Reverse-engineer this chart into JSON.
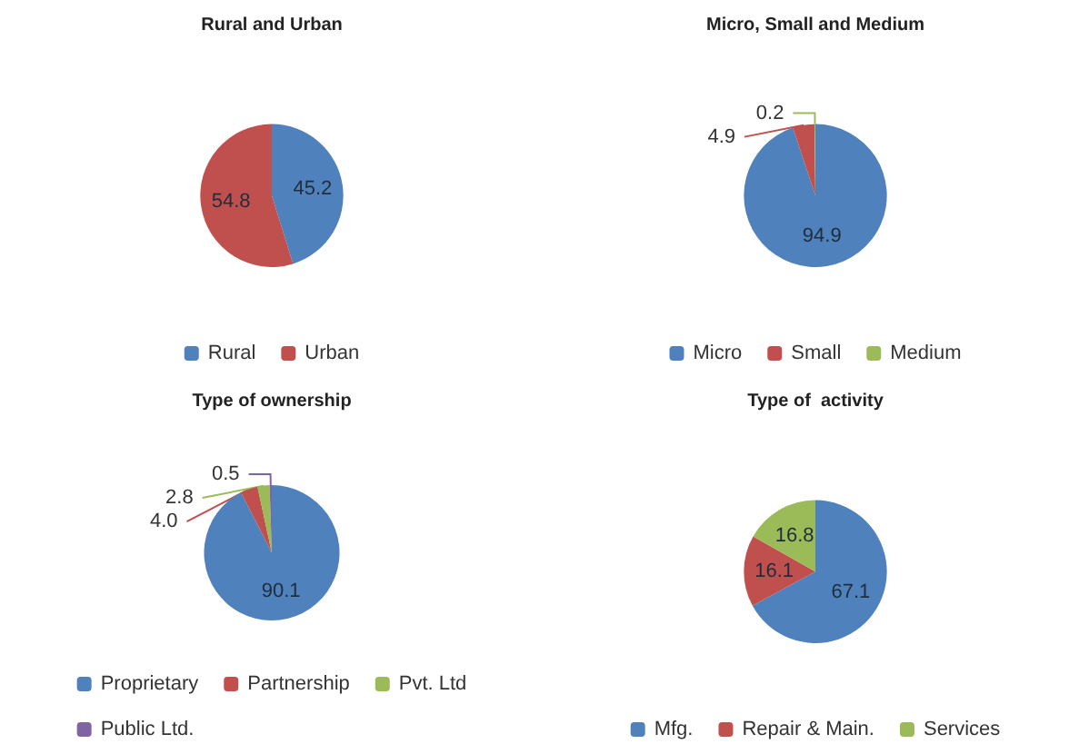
{
  "chart_data": [
    {
      "type": "pie",
      "title": "Rural and Urban",
      "categories": [
        "Rural",
        "Urban"
      ],
      "values": [
        45.2,
        54.8
      ],
      "colors": [
        "#4f81bd",
        "#c0504d"
      ],
      "data_labels": true,
      "legend": "bottom"
    },
    {
      "type": "pie",
      "title": "Micro, Small and Medium",
      "categories": [
        "Micro",
        "Small",
        "Medium"
      ],
      "values": [
        94.9,
        4.9,
        0.2
      ],
      "colors": [
        "#4f81bd",
        "#c0504d",
        "#9bbb59"
      ],
      "data_labels": true,
      "legend": "bottom"
    },
    {
      "type": "pie",
      "title": "Type of ownership",
      "categories": [
        "Proprietary",
        "Partnership",
        "Pvt. Ltd",
        "Public Ltd."
      ],
      "values": [
        90.1,
        4.0,
        2.8,
        0.5
      ],
      "value_labels": [
        "90.1",
        "4.0",
        "2.8",
        "0.5"
      ],
      "colors": [
        "#4f81bd",
        "#c0504d",
        "#9bbb59",
        "#8064a2"
      ],
      "legend": "bottom"
    },
    {
      "type": "pie",
      "title": "Type of  activity",
      "categories": [
        "Mfg.",
        "Repair & Main.",
        "Services"
      ],
      "values": [
        67.1,
        16.1,
        16.8
      ],
      "colors": [
        "#4f81bd",
        "#c0504d",
        "#9bbb59"
      ],
      "data_labels": true,
      "legend": "bottom"
    }
  ]
}
